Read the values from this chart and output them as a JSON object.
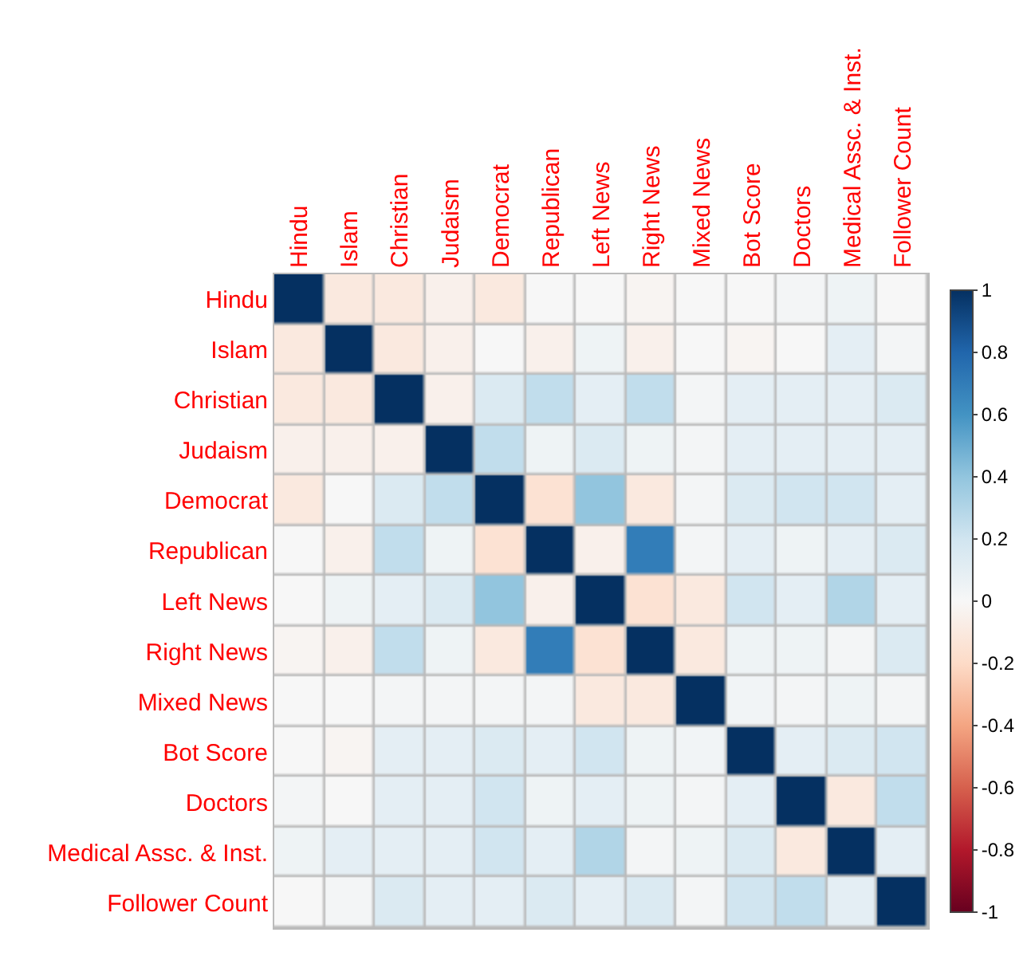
{
  "chart_data": {
    "type": "heatmap",
    "categories": [
      "Hindu",
      "Islam",
      "Christian",
      "Judaism",
      "Democrat",
      "Republican",
      "Left News",
      "Right News",
      "Mixed News",
      "Bot Score",
      "Doctors",
      "Medical Assc. & Inst.",
      "Follower Count"
    ],
    "y_categories": [
      "Hindu",
      "Islam",
      "Christian",
      "Judaism",
      "Democrat",
      "Republican",
      "Left News",
      "Right News",
      "Mixed News",
      "Bot Score",
      "Doctors",
      "Medical Assc. & Inst.",
      "Follower Count"
    ],
    "cells": [
      [
        1,
        -0.1,
        -0.1,
        -0.05,
        -0.1,
        0,
        0,
        -0.02,
        0,
        0,
        0.02,
        0.05,
        0
      ],
      [
        -0.1,
        1,
        -0.1,
        -0.05,
        0,
        -0.05,
        0.05,
        -0.05,
        0,
        -0.02,
        0,
        0.1,
        0.02
      ],
      [
        -0.1,
        -0.1,
        1,
        -0.05,
        0.15,
        0.25,
        0.1,
        0.25,
        0.02,
        0.1,
        0.1,
        0.1,
        0.15
      ],
      [
        -0.05,
        -0.05,
        -0.05,
        1,
        0.25,
        0.05,
        0.15,
        0.05,
        0.02,
        0.1,
        0.1,
        0.1,
        0.1
      ],
      [
        -0.1,
        0,
        0.15,
        0.25,
        1,
        -0.15,
        0.4,
        -0.1,
        0.02,
        0.15,
        0.2,
        0.2,
        0.1
      ],
      [
        0,
        -0.05,
        0.25,
        0.05,
        -0.15,
        1,
        -0.05,
        0.7,
        0.02,
        0.1,
        0.05,
        0.1,
        0.15
      ],
      [
        0,
        0.05,
        0.1,
        0.15,
        0.4,
        -0.05,
        1,
        -0.15,
        -0.1,
        0.2,
        0.1,
        0.3,
        0.1
      ],
      [
        -0.02,
        -0.05,
        0.25,
        0.05,
        -0.1,
        0.7,
        -0.15,
        1,
        -0.1,
        0.05,
        0.05,
        0.02,
        0.15
      ],
      [
        0,
        0,
        0.02,
        0.02,
        0.02,
        0.02,
        -0.1,
        -0.1,
        1,
        0.03,
        0.02,
        0.05,
        0.02
      ],
      [
        0,
        -0.02,
        0.1,
        0.1,
        0.15,
        0.1,
        0.2,
        0.05,
        0.03,
        1,
        0.1,
        0.15,
        0.2
      ],
      [
        0.02,
        0,
        0.1,
        0.1,
        0.2,
        0.05,
        0.1,
        0.05,
        0.02,
        0.1,
        1,
        -0.1,
        0.25
      ],
      [
        0.05,
        0.1,
        0.1,
        0.1,
        0.2,
        0.1,
        0.3,
        0.02,
        0.05,
        0.15,
        -0.1,
        1,
        0.1
      ],
      [
        0,
        0.02,
        0.15,
        0.1,
        0.1,
        0.15,
        0.1,
        0.15,
        0.02,
        0.2,
        0.25,
        0.1,
        1
      ]
    ],
    "clim": [
      -1,
      1
    ],
    "cticks": [
      -1,
      -0.8,
      -0.6,
      -0.4,
      -0.2,
      0,
      0.2,
      0.4,
      0.6,
      0.8,
      1
    ]
  }
}
